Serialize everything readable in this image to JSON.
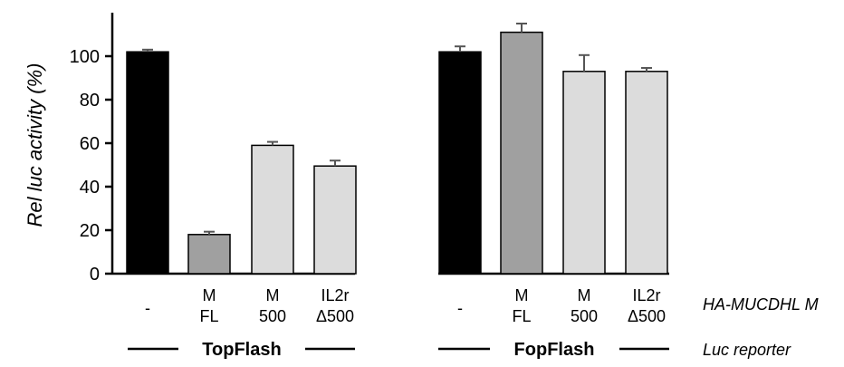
{
  "chart_data": {
    "type": "bar",
    "ylabel": "Rel luc activity (%)",
    "ylim": [
      0,
      120
    ],
    "yticks": [
      0,
      20,
      40,
      60,
      80,
      100
    ],
    "grid": false,
    "bars": [
      {
        "group": "TopFlash",
        "label_lines": [
          "-"
        ],
        "value": 102,
        "error": 1,
        "color": "#000000"
      },
      {
        "group": "TopFlash",
        "label_lines": [
          "M",
          "FL"
        ],
        "value": 18,
        "error": 1.3,
        "color": "#a0a0a0"
      },
      {
        "group": "TopFlash",
        "label_lines": [
          "M",
          "500"
        ],
        "value": 59,
        "error": 1.6,
        "color": "#dcdcdc"
      },
      {
        "group": "TopFlash",
        "label_lines": [
          "IL2r",
          "Δ500"
        ],
        "value": 49.5,
        "error": 2.5,
        "color": "#dcdcdc"
      },
      {
        "group": "FopFlash",
        "label_lines": [
          "-"
        ],
        "value": 102,
        "error": 2.5,
        "color": "#000000"
      },
      {
        "group": "FopFlash",
        "label_lines": [
          "M",
          "FL"
        ],
        "value": 111,
        "error": 4,
        "color": "#a0a0a0"
      },
      {
        "group": "FopFlash",
        "label_lines": [
          "M",
          "500"
        ],
        "value": 93,
        "error": 7.5,
        "color": "#dcdcdc"
      },
      {
        "group": "FopFlash",
        "label_lines": [
          "IL2r",
          "Δ500"
        ],
        "value": 93,
        "error": 1.6,
        "color": "#dcdcdc"
      }
    ],
    "groups": [
      "TopFlash",
      "FopFlash"
    ],
    "row_labels": {
      "construct": "HA-MUCDHL M",
      "reporter": "Luc reporter"
    }
  }
}
